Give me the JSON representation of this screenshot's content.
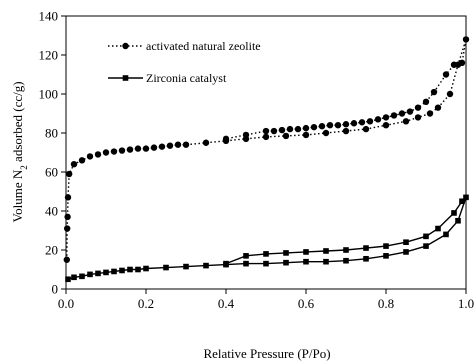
{
  "chart_data": {
    "type": "line",
    "xlabel": "Relative Pressure (P/Po)",
    "ylabel_main": "Volume N",
    "ylabel_sub": "2",
    "ylabel_rest": " adsorbed (cc/g)",
    "xlim": [
      0,
      1
    ],
    "ylim": [
      0,
      140
    ],
    "xticks": [
      0.0,
      0.2,
      0.4,
      0.6,
      0.8,
      1.0
    ],
    "xtick_labels": [
      "0.0",
      "0.2",
      "0.4",
      "0.6",
      "0.8",
      "1.0"
    ],
    "yticks": [
      0,
      20,
      40,
      60,
      80,
      100,
      120,
      140
    ],
    "ytick_labels": [
      "0",
      "20",
      "40",
      "60",
      "80",
      "100",
      "120",
      "140"
    ],
    "grid": false,
    "legend_position": "top-left",
    "series": [
      {
        "name": "activated natural zeolite",
        "line_style": "dotted",
        "marker": "circle",
        "color": "#000000",
        "x": [
          0.002,
          0.003,
          0.004,
          0.005,
          0.008,
          0.02,
          0.04,
          0.06,
          0.08,
          0.1,
          0.12,
          0.14,
          0.16,
          0.18,
          0.2,
          0.22,
          0.24,
          0.26,
          0.28,
          0.3,
          0.35,
          0.4,
          0.45,
          0.5,
          0.55,
          0.6,
          0.65,
          0.7,
          0.75,
          0.8,
          0.85,
          0.88,
          0.91,
          0.93,
          0.96,
          0.98,
          1.0,
          0.99,
          0.97,
          0.95,
          0.92,
          0.9,
          0.88,
          0.86,
          0.84,
          0.82,
          0.8,
          0.78,
          0.76,
          0.74,
          0.72,
          0.7,
          0.68,
          0.66,
          0.64,
          0.62,
          0.6,
          0.58,
          0.56,
          0.54,
          0.52,
          0.5,
          0.45,
          0.4
        ],
        "y": [
          15,
          31,
          37,
          47,
          59,
          64,
          66,
          68,
          69,
          70,
          70.5,
          71,
          71.5,
          72,
          72,
          72.5,
          73,
          73.5,
          74,
          74,
          75,
          76,
          77,
          78,
          78.5,
          79,
          80,
          81,
          82,
          84,
          86,
          88,
          90,
          93,
          100,
          115,
          128,
          116,
          115,
          110,
          101,
          96,
          93,
          91,
          90,
          89,
          88,
          87,
          86,
          85.5,
          85,
          84.5,
          84,
          84,
          83.5,
          83,
          82.5,
          82,
          82,
          81.5,
          81,
          81,
          79,
          77
        ]
      },
      {
        "name": "Zirconia catalyst",
        "line_style": "solid",
        "marker": "square",
        "color": "#000000",
        "x": [
          0.005,
          0.02,
          0.04,
          0.06,
          0.08,
          0.1,
          0.12,
          0.14,
          0.16,
          0.18,
          0.2,
          0.25,
          0.3,
          0.35,
          0.4,
          0.45,
          0.5,
          0.55,
          0.6,
          0.65,
          0.7,
          0.75,
          0.8,
          0.85,
          0.9,
          0.95,
          0.98,
          1.0,
          0.99,
          0.97,
          0.93,
          0.9,
          0.85,
          0.8,
          0.75,
          0.7,
          0.65,
          0.6,
          0.55,
          0.5,
          0.45,
          0.4
        ],
        "y": [
          5,
          6,
          6.5,
          7.5,
          8,
          8.5,
          9,
          9.5,
          10,
          10,
          10.5,
          11,
          11.5,
          12,
          12.5,
          13,
          13,
          13.5,
          14,
          14,
          14.5,
          15.5,
          17,
          19,
          22,
          28,
          35,
          47,
          45,
          39,
          31,
          27,
          24,
          22,
          21,
          20,
          19.5,
          19,
          18.5,
          18,
          17,
          13
        ]
      }
    ]
  }
}
